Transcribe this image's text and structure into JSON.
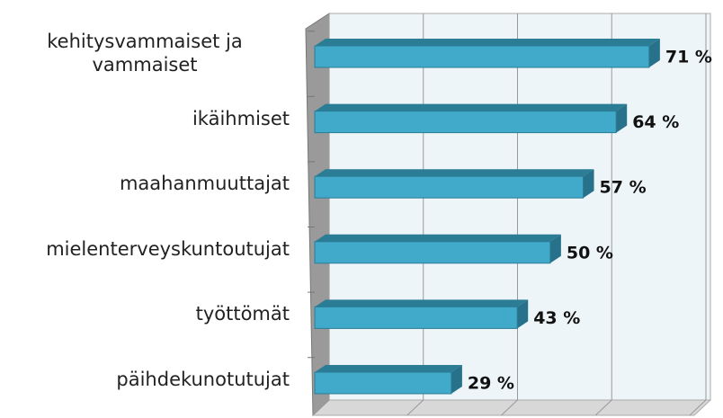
{
  "chart_data": {
    "type": "bar",
    "orientation": "horizontal",
    "categories": [
      "kehitysvammaiset ja vammaiset",
      "ikäihmiset",
      "maahanmuuttajat",
      "mielenterveyskuntoutujat",
      "työttömät",
      "päihdekunotutujat"
    ],
    "values": [
      71,
      64,
      57,
      50,
      43,
      29
    ],
    "value_labels": [
      "71 %",
      "64 %",
      "57 %",
      "50 %",
      "43 %",
      "29 %"
    ],
    "color": "#41a9c9",
    "xlim": [
      0,
      80
    ],
    "xticks": [
      0,
      20,
      40,
      60,
      80
    ],
    "grid": true
  }
}
